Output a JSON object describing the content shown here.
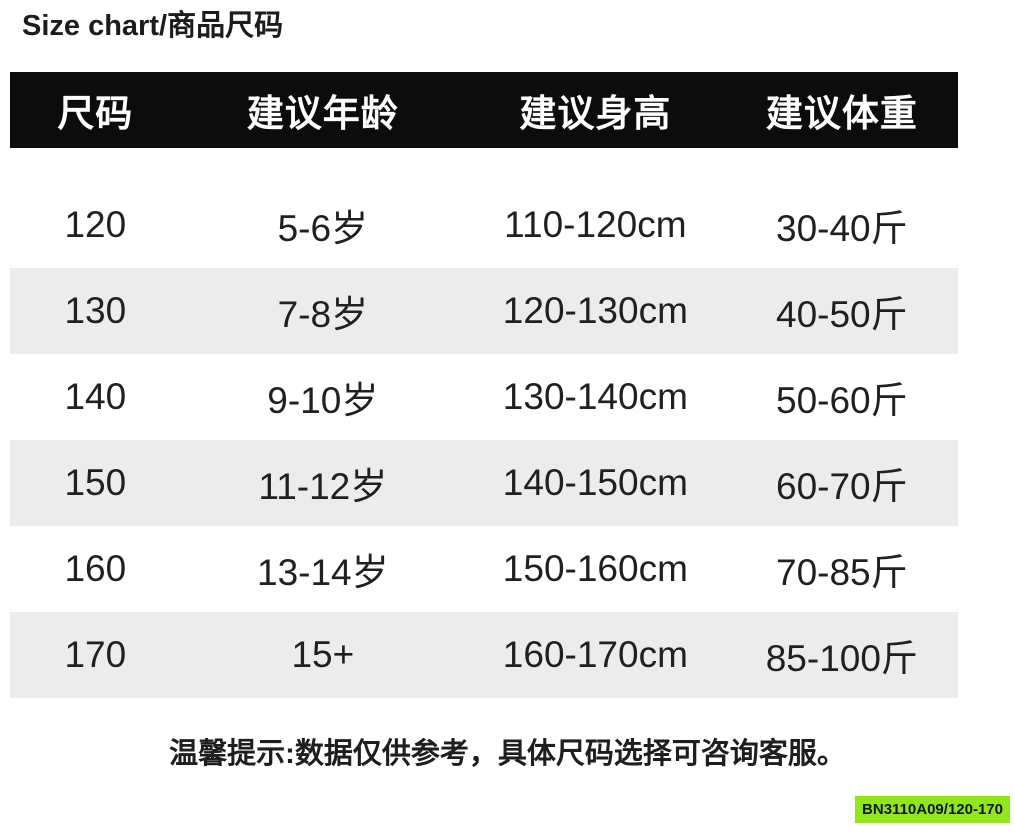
{
  "title": {
    "s": "S",
    "rest": "ize chart/",
    "cn": "商品尺码"
  },
  "chart_data": {
    "type": "table",
    "title": "Size chart/商品尺码",
    "columns": [
      "尺码",
      "建议年龄",
      "建议身高",
      "建议体重"
    ],
    "rows": [
      [
        "120",
        "5-6岁",
        "110-120cm",
        "30-40斤"
      ],
      [
        "130",
        "7-8岁",
        "120-130cm",
        "40-50斤"
      ],
      [
        "140",
        "9-10岁",
        "130-140cm",
        "50-60斤"
      ],
      [
        "150",
        "11-12岁",
        "140-150cm",
        "60-70斤"
      ],
      [
        "160",
        "13-14岁",
        "150-160cm",
        "70-85斤"
      ],
      [
        "170",
        "15+",
        "160-170cm",
        "85-100斤"
      ]
    ],
    "note": "温馨提示:数据仅供参考，具体尺码选择可咨询客服。",
    "product_code": "BN3110A09/120-170",
    "layout_hints": {
      "striped_rows": "even rows gray",
      "header_style": "white text on black bar"
    }
  },
  "colors": {
    "header_bg": "#0c0c0c",
    "header_text": "#ffffff",
    "stripe_bg": "#ececec",
    "body_text": "#202020",
    "badge_bg": "#93e61c",
    "badge_text": "#101828"
  }
}
